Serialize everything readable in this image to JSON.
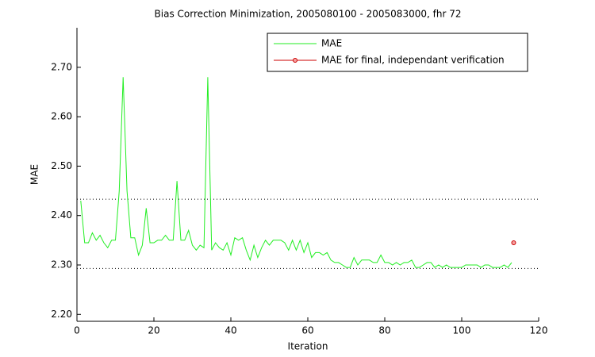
{
  "chart_data": {
    "type": "line",
    "title": "Bias Correction Minimization, 2005080100 - 2005083000, fhr 72",
    "xlabel": "Iteration",
    "ylabel": "MAE",
    "xlim": [
      0,
      120
    ],
    "xticks": [
      0,
      20,
      40,
      60,
      80,
      100,
      120
    ],
    "ylim": [
      2.186,
      2.78
    ],
    "yticks": [
      {
        "value": 2.2,
        "label": "2.20"
      },
      {
        "value": 2.3,
        "label": "2.30"
      },
      {
        "value": 2.4,
        "label": "2.40"
      },
      {
        "value": 2.5,
        "label": "2.50"
      },
      {
        "value": 2.6,
        "label": "2.60"
      },
      {
        "value": 2.7,
        "label": "2.70"
      }
    ],
    "hlines": [
      2.433,
      2.293
    ],
    "legend": "upper right",
    "series": [
      {
        "name": "MAE",
        "color": "#22ee22",
        "x": [
          1,
          2,
          3,
          4,
          5,
          6,
          7,
          8,
          9,
          10,
          11,
          12,
          13,
          14,
          15,
          16,
          17,
          18,
          19,
          20,
          21,
          22,
          23,
          24,
          25,
          26,
          27,
          28,
          29,
          30,
          31,
          32,
          33,
          34,
          35,
          36,
          37,
          38,
          39,
          40,
          41,
          42,
          43,
          44,
          45,
          46,
          47,
          48,
          49,
          50,
          51,
          52,
          53,
          54,
          55,
          56,
          57,
          58,
          59,
          60,
          61,
          62,
          63,
          64,
          65,
          66,
          67,
          68,
          69,
          70,
          71,
          72,
          73,
          74,
          75,
          76,
          77,
          78,
          79,
          80,
          81,
          82,
          83,
          84,
          85,
          86,
          87,
          88,
          89,
          90,
          91,
          92,
          93,
          94,
          95,
          96,
          97,
          98,
          99,
          100,
          101,
          102,
          103,
          104,
          105,
          106,
          107,
          108,
          109,
          110,
          111,
          112,
          113
        ],
        "values": [
          2.43,
          2.345,
          2.345,
          2.365,
          2.35,
          2.36,
          2.345,
          2.335,
          2.35,
          2.35,
          2.45,
          2.68,
          2.45,
          2.355,
          2.355,
          2.32,
          2.34,
          2.415,
          2.345,
          2.345,
          2.35,
          2.35,
          2.36,
          2.35,
          2.35,
          2.47,
          2.35,
          2.35,
          2.37,
          2.34,
          2.33,
          2.34,
          2.335,
          2.68,
          2.33,
          2.345,
          2.335,
          2.33,
          2.345,
          2.32,
          2.355,
          2.35,
          2.355,
          2.33,
          2.31,
          2.34,
          2.315,
          2.335,
          2.35,
          2.34,
          2.35,
          2.35,
          2.35,
          2.345,
          2.33,
          2.35,
          2.33,
          2.35,
          2.325,
          2.345,
          2.315,
          2.325,
          2.325,
          2.32,
          2.325,
          2.31,
          2.305,
          2.305,
          2.3,
          2.295,
          2.295,
          2.315,
          2.3,
          2.31,
          2.31,
          2.31,
          2.305,
          2.305,
          2.32,
          2.305,
          2.305,
          2.3,
          2.305,
          2.3,
          2.305,
          2.305,
          2.31,
          2.295,
          2.295,
          2.3,
          2.305,
          2.305,
          2.295,
          2.3,
          2.295,
          2.3,
          2.295,
          2.295,
          2.295,
          2.295,
          2.3,
          2.3,
          2.3,
          2.3,
          2.295,
          2.3,
          2.3,
          2.295,
          2.295,
          2.295,
          2.3,
          2.295,
          2.305
        ]
      },
      {
        "name": "MAE for final, independant verification",
        "color": "#cc0000",
        "marker": "o",
        "x": [
          113.5
        ],
        "values": [
          2.345
        ]
      }
    ]
  }
}
